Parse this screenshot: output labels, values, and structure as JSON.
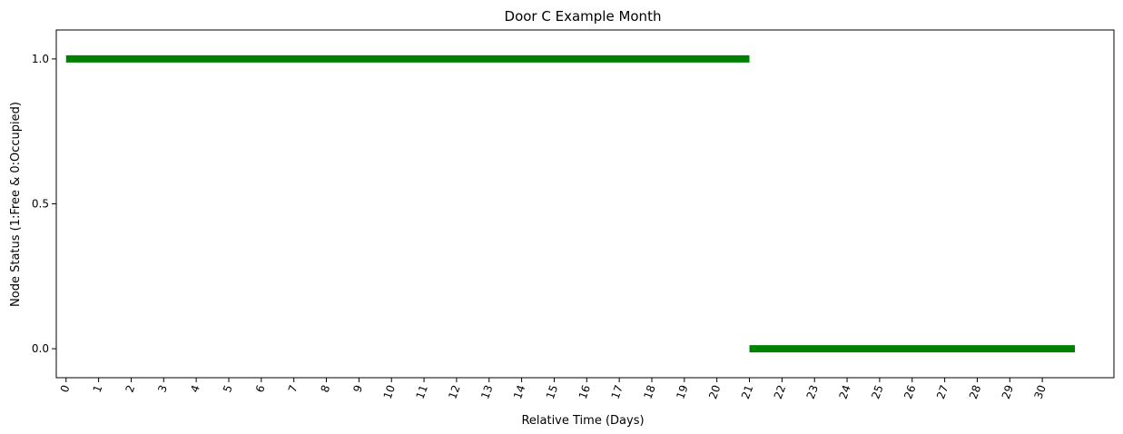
{
  "chart_data": {
    "type": "line",
    "title": "Door C Example Month",
    "xlabel": "Relative Time (Days)",
    "ylabel": "Node Status (1:Free & 0:Occupied)",
    "xlim": [
      -0.3,
      32.2
    ],
    "ylim": [
      -0.1,
      1.1
    ],
    "x_ticks": [
      0,
      1,
      2,
      3,
      4,
      5,
      6,
      7,
      8,
      9,
      10,
      11,
      12,
      13,
      14,
      15,
      16,
      17,
      18,
      19,
      20,
      21,
      22,
      23,
      24,
      25,
      26,
      27,
      28,
      29,
      30
    ],
    "x_tick_labels": [
      "0",
      "1",
      "2",
      "3",
      "4",
      "5",
      "6",
      "7",
      "8",
      "9",
      "10",
      "11",
      "12",
      "13",
      "14",
      "15",
      "16",
      "17",
      "18",
      "19",
      "20",
      "21",
      "22",
      "23",
      "24",
      "25",
      "26",
      "27",
      "28",
      "29",
      "30"
    ],
    "y_ticks": [
      0.0,
      0.5,
      1.0
    ],
    "y_tick_labels": [
      "0.0",
      "0.5",
      "1.0"
    ],
    "grid": false,
    "series": [
      {
        "segments": [
          {
            "x_start": 0,
            "x_end": 21,
            "y": 1.0
          },
          {
            "x_start": 21,
            "x_end": 31,
            "y": 0.0
          }
        ],
        "color": "#008000"
      }
    ]
  }
}
